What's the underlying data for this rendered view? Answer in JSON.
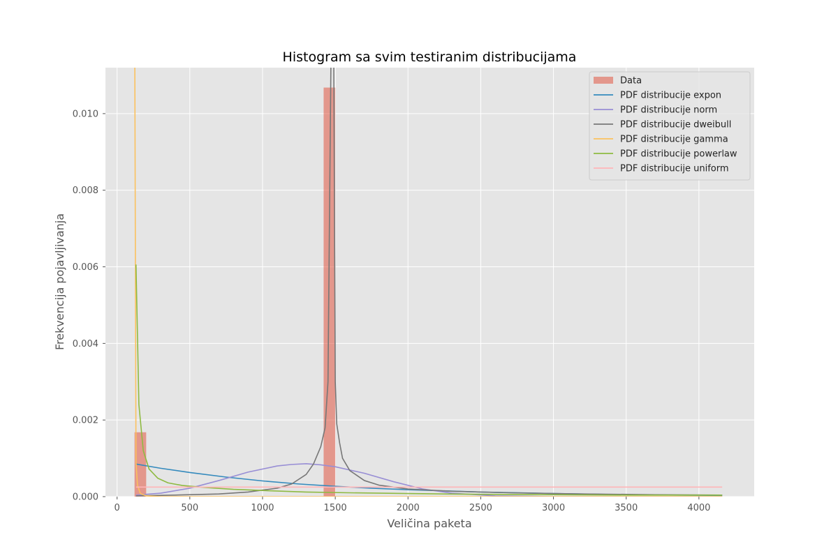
{
  "chart_data": {
    "type": "histogram",
    "title": "Histogram sa svim testiranim distribucijama",
    "xlabel": "Veličina paketa",
    "ylabel": "Frekvencija pojavljivanja",
    "xlim": [
      -80,
      4380
    ],
    "ylim": [
      0,
      0.0112
    ],
    "x_ticks": [
      0,
      500,
      1000,
      1500,
      2000,
      2500,
      3000,
      3500,
      4000
    ],
    "y_ticks": [
      0.0,
      0.002,
      0.004,
      0.006,
      0.008,
      0.01
    ],
    "x_tick_labels": [
      "0",
      "500",
      "1000",
      "1500",
      "2000",
      "2500",
      "3000",
      "3500",
      "4000"
    ],
    "y_tick_labels": [
      "0.000",
      "0.002",
      "0.004",
      "0.006",
      "0.008",
      "0.010"
    ],
    "grid": true,
    "legend_position": "top-right",
    "histogram": {
      "name": "Data",
      "color": "#E24A33",
      "alpha": 0.5,
      "bins": [
        {
          "x0": 120,
          "x1": 200,
          "value": 0.00168
        },
        {
          "x0": 1420,
          "x1": 1500,
          "value": 0.01068
        }
      ]
    },
    "series": [
      {
        "name": "PDF distribucije expon",
        "color": "#348ABD",
        "x": [
          130,
          300,
          500,
          750,
          1000,
          1250,
          1500,
          1750,
          2000,
          2500,
          3000,
          3500,
          4160
        ],
        "y": [
          0.00085,
          0.00074,
          0.00063,
          0.00051,
          0.00041,
          0.00033,
          0.00027,
          0.00022,
          0.00018,
          0.00012,
          8e-05,
          5e-05,
          3e-05
        ]
      },
      {
        "name": "PDF distribucije norm",
        "color": "#988ED5",
        "x": [
          130,
          300,
          500,
          700,
          900,
          1100,
          1200,
          1300,
          1400,
          1500,
          1700,
          1900,
          2100,
          2300,
          2600,
          3000,
          3500,
          4160
        ],
        "y": [
          4e-05,
          9e-05,
          0.00022,
          0.00042,
          0.00064,
          0.0008,
          0.00084,
          0.00086,
          0.00083,
          0.00078,
          0.00061,
          0.00039,
          0.0002,
          9e-05,
          2e-05,
          0.0,
          0.0,
          0.0
        ]
      },
      {
        "name": "PDF distribucije dweibull",
        "color": "#777777",
        "x": [
          130,
          400,
          700,
          900,
          1100,
          1200,
          1300,
          1350,
          1400,
          1430,
          1450,
          1470,
          1480,
          1490,
          1500,
          1510,
          1530,
          1550,
          1600,
          1700,
          1800,
          2000,
          2300,
          2700,
          3200,
          3700,
          4160
        ],
        "y": [
          2e-05,
          4e-05,
          7e-05,
          0.00012,
          0.00022,
          0.00033,
          0.00058,
          0.00085,
          0.0013,
          0.0018,
          0.003,
          0.0113,
          0.0114,
          0.0113,
          0.003,
          0.0019,
          0.0014,
          0.001,
          0.00068,
          0.00042,
          0.0003,
          0.0002,
          0.00014,
          0.0001,
          7e-05,
          5e-05,
          4e-05
        ]
      },
      {
        "name": "PDF distribucije gamma",
        "color": "#FBC15E",
        "x": [
          122,
          130,
          140,
          160,
          200,
          300,
          500,
          1000,
          2000,
          4160
        ],
        "y": [
          0.0112,
          0.0009,
          0.0003,
          8e-05,
          2e-05,
          0.0,
          0.0,
          0.0,
          0.0,
          0.0
        ]
      },
      {
        "name": "PDF distribucije powerlaw",
        "color": "#8EBA42",
        "x": [
          130,
          150,
          180,
          220,
          280,
          350,
          450,
          600,
          800,
          1000,
          1300,
          1600,
          2000,
          2500,
          3000,
          3500,
          4160
        ],
        "y": [
          0.00606,
          0.0024,
          0.0012,
          0.00072,
          0.00048,
          0.00036,
          0.00029,
          0.00024,
          0.00019,
          0.00016,
          0.00012,
          0.0001,
          8e-05,
          6e-05,
          5e-05,
          4e-05,
          4e-05
        ]
      },
      {
        "name": "PDF distribucije uniform",
        "color": "#FFB5B8",
        "x": [
          130,
          4160
        ],
        "y": [
          0.00025,
          0.00025
        ]
      }
    ]
  }
}
